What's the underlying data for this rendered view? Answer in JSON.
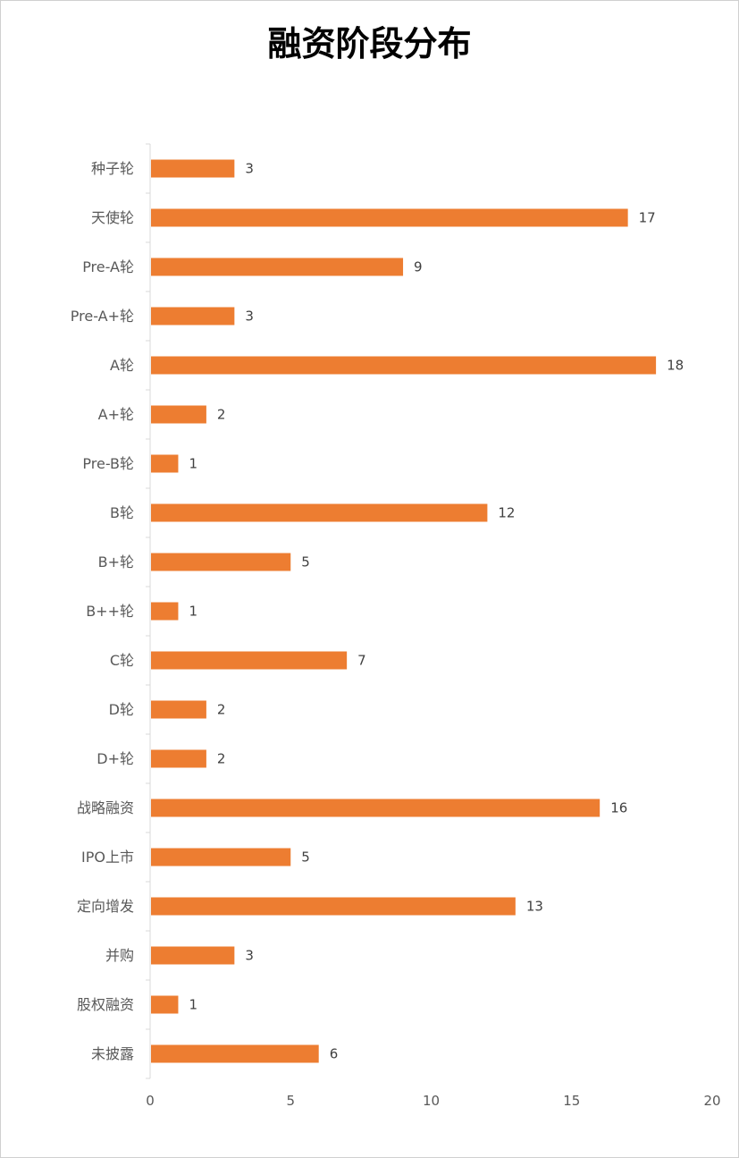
{
  "chart_data": {
    "type": "bar",
    "orientation": "horizontal",
    "title": "融资阶段分布",
    "categories": [
      "种子轮",
      "天使轮",
      "Pre-A轮",
      "Pre-A+轮",
      "A轮",
      "A+轮",
      "Pre-B轮",
      "B轮",
      "B+轮",
      "B++轮",
      "C轮",
      "D轮",
      "D+轮",
      "战略融资",
      "IPO上市",
      "定向增发",
      "并购",
      "股权融资",
      "未披露"
    ],
    "values": [
      3,
      17,
      9,
      3,
      18,
      2,
      1,
      12,
      5,
      1,
      7,
      2,
      2,
      16,
      5,
      13,
      3,
      1,
      6
    ],
    "xlim": [
      0,
      20
    ],
    "xticks": [
      0,
      5,
      10,
      15,
      20
    ],
    "grid": false,
    "legend": "none",
    "bar_color": "#ED7D31"
  }
}
